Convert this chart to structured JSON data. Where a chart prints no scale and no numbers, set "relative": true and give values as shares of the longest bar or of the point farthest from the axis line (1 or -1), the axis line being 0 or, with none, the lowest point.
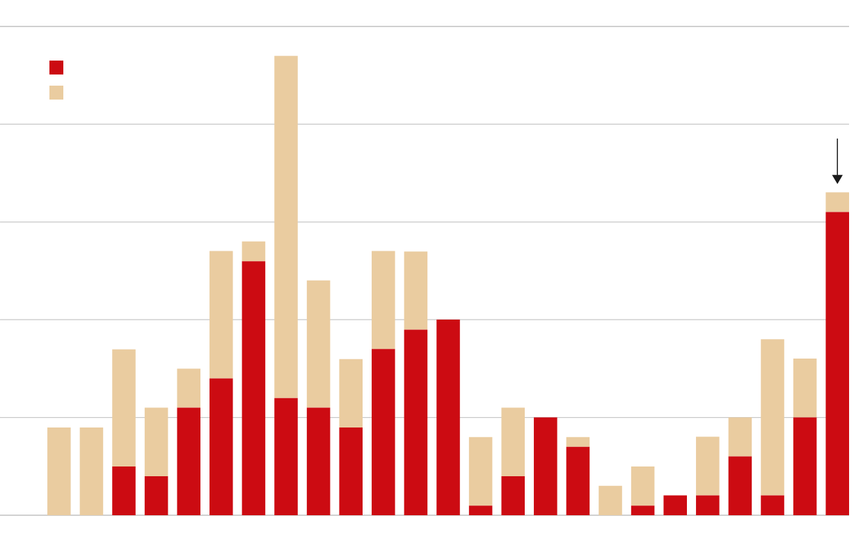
{
  "chart_data": {
    "type": "bar",
    "stacked": true,
    "relative": true,
    "categories": [
      null,
      null,
      null,
      null,
      null,
      null,
      null,
      null,
      null,
      null,
      null,
      null,
      null,
      null,
      null,
      null,
      null,
      null,
      null,
      null,
      null,
      null,
      null,
      null,
      null
    ],
    "series": [
      {
        "color": "#cc0b12",
        "values": [
          0,
          0,
          0.106,
          0.085,
          0.234,
          0.298,
          0.553,
          0.255,
          0.234,
          0.191,
          0.362,
          0.404,
          0.426,
          0.021,
          0.085,
          0.213,
          0.149,
          0,
          0.021,
          0.043,
          0.043,
          0.128,
          0.043,
          0.213,
          0.66
        ]
      },
      {
        "color": "#eacca0",
        "values": [
          0.191,
          0.191,
          0.255,
          0.149,
          0.085,
          0.277,
          0.043,
          0.745,
          0.277,
          0.149,
          0.213,
          0.17,
          0,
          0.149,
          0.149,
          0,
          0.021,
          0.064,
          0.085,
          0,
          0.128,
          0.085,
          0.34,
          0.128,
          0.043
        ]
      }
    ],
    "grid": "y"
  }
}
